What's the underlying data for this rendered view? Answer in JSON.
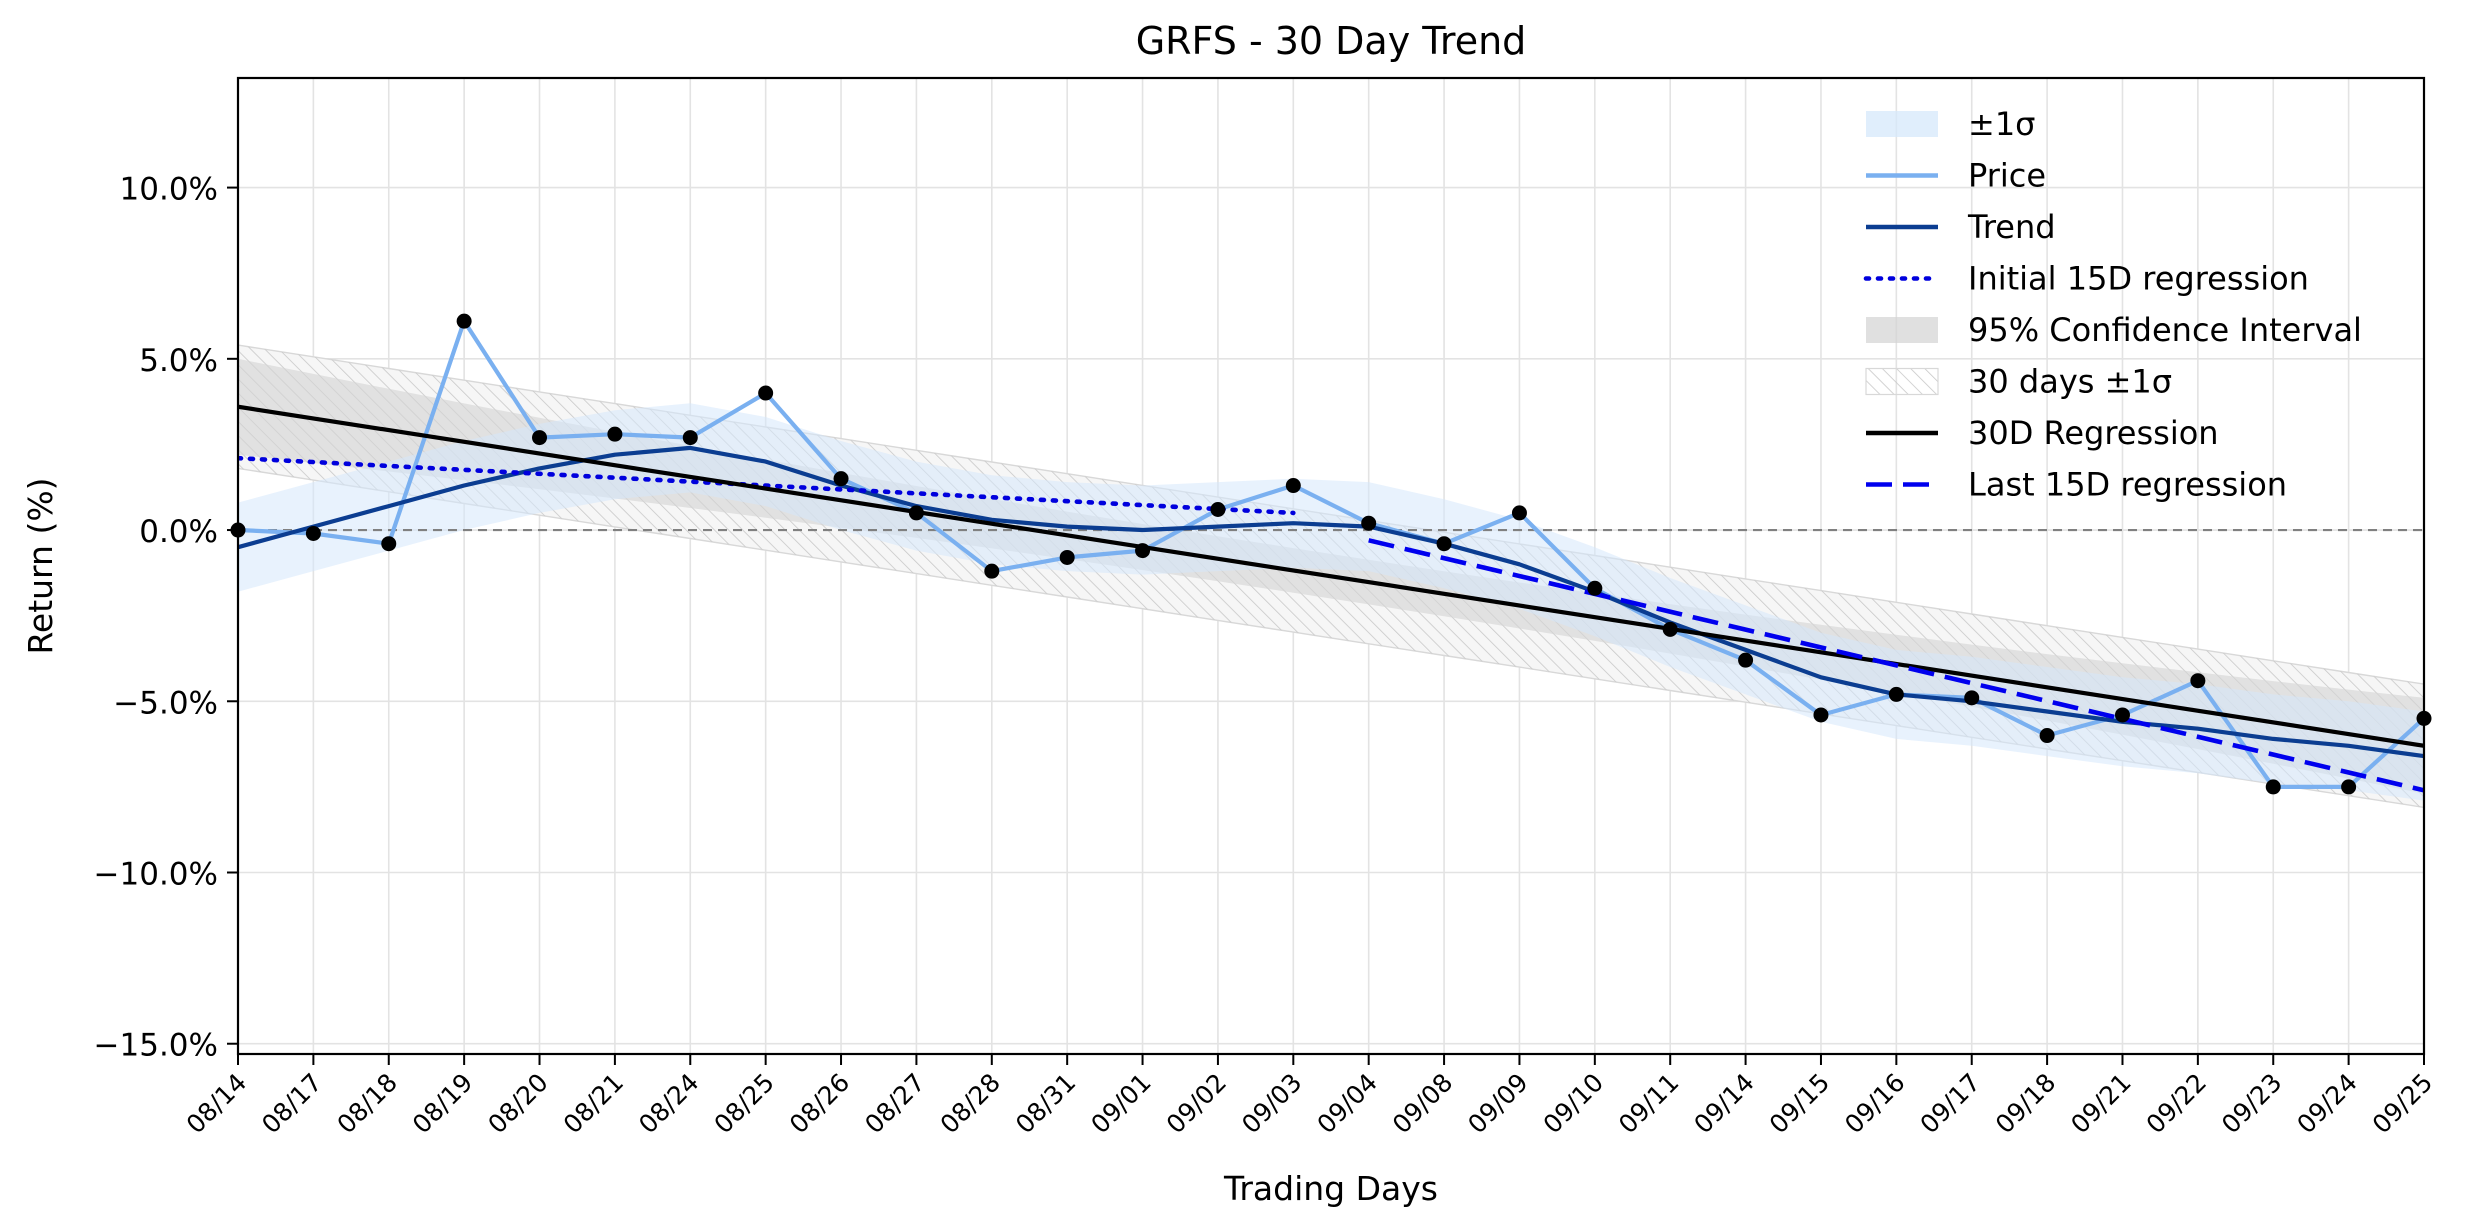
{
  "chart_data": {
    "type": "line",
    "title": "GRFS - 30 Day Trend",
    "xlabel": "Trading Days",
    "ylabel": "Return (%)",
    "ylim": [
      -15.3,
      13.2
    ],
    "yticks": [
      {
        "value": 10,
        "label": "10.0%"
      },
      {
        "value": 5,
        "label": "5.0%"
      },
      {
        "value": 0,
        "label": "0.0%"
      },
      {
        "value": -5,
        "label": "−5.0%"
      },
      {
        "value": -10,
        "label": "−10.0%"
      },
      {
        "value": -15,
        "label": "−15.0%"
      }
    ],
    "grid": true,
    "legend_position": "top-right",
    "categories": [
      "08/14",
      "08/17",
      "08/18",
      "08/19",
      "08/20",
      "08/21",
      "08/24",
      "08/25",
      "08/26",
      "08/27",
      "08/28",
      "08/31",
      "09/01",
      "09/02",
      "09/03",
      "09/04",
      "09/08",
      "09/09",
      "09/10",
      "09/11",
      "09/14",
      "09/15",
      "09/16",
      "09/17",
      "09/18",
      "09/21",
      "09/22",
      "09/23",
      "09/24",
      "09/25"
    ],
    "legend": [
      {
        "label": "±1σ",
        "kind": "fill-light-blue"
      },
      {
        "label": "Price",
        "kind": "line-price"
      },
      {
        "label": "Trend",
        "kind": "line-trend"
      },
      {
        "label": "Initial 15D regression",
        "kind": "line-dotted-blue"
      },
      {
        "label": "95% Confidence Interval",
        "kind": "fill-gray"
      },
      {
        "label": "30 days ±1σ",
        "kind": "fill-hatched"
      },
      {
        "label": "30D Regression",
        "kind": "line-black"
      },
      {
        "label": "Last 15D regression",
        "kind": "line-dashed-blue"
      }
    ],
    "series": [
      {
        "name": "Price",
        "color": "#7ab0f0",
        "values": [
          0.0,
          -0.1,
          -0.4,
          6.1,
          2.7,
          2.8,
          2.7,
          4.0,
          1.5,
          0.5,
          -1.2,
          -0.8,
          -0.6,
          0.6,
          1.3,
          0.2,
          -0.4,
          0.5,
          -1.7,
          -2.9,
          -3.8,
          -5.4,
          -4.8,
          -4.9,
          -6.0,
          -5.4,
          -4.4,
          -7.5,
          -7.5,
          -5.5
        ]
      },
      {
        "name": "Trend",
        "color": "#0b3d91",
        "values": [
          -0.5,
          0.1,
          0.7,
          1.3,
          1.8,
          2.2,
          2.4,
          2.0,
          1.3,
          0.7,
          0.3,
          0.1,
          0.0,
          0.1,
          0.2,
          0.1,
          -0.4,
          -1.0,
          -1.8,
          -2.7,
          -3.5,
          -4.3,
          -4.8,
          -5.0,
          -5.3,
          -5.6,
          -5.8,
          -6.1,
          -6.3,
          -6.6
        ]
      },
      {
        "name": "Initial 15D regression",
        "color": "#0000dd",
        "x_range": [
          0,
          14
        ],
        "values_at_ends": [
          2.1,
          0.5
        ]
      },
      {
        "name": "30D Regression",
        "color": "#000000",
        "x_range": [
          0,
          29
        ],
        "values_at_ends": [
          3.6,
          -6.3
        ]
      },
      {
        "name": "Last 15D regression",
        "color": "#0000ee",
        "x_range": [
          15,
          29
        ],
        "values_at_ends": [
          -0.3,
          -7.6
        ]
      }
    ],
    "bands": {
      "sigma_band_half_width": 1.3,
      "confidence_interval": {
        "start": [
          2.3,
          5.0
        ],
        "end": [
          -7.2,
          -5.2
        ],
        "mid": [
          -2.0,
          -0.7
        ]
      },
      "thirty_day_sigma_offset": 1.8
    },
    "colors": {
      "sigma_fill": "#d6e8fb",
      "ci_fill": "#d3d3d3",
      "hatch": "#cfcfcf",
      "zero_line": "#808080",
      "marker": "#000000"
    }
  }
}
